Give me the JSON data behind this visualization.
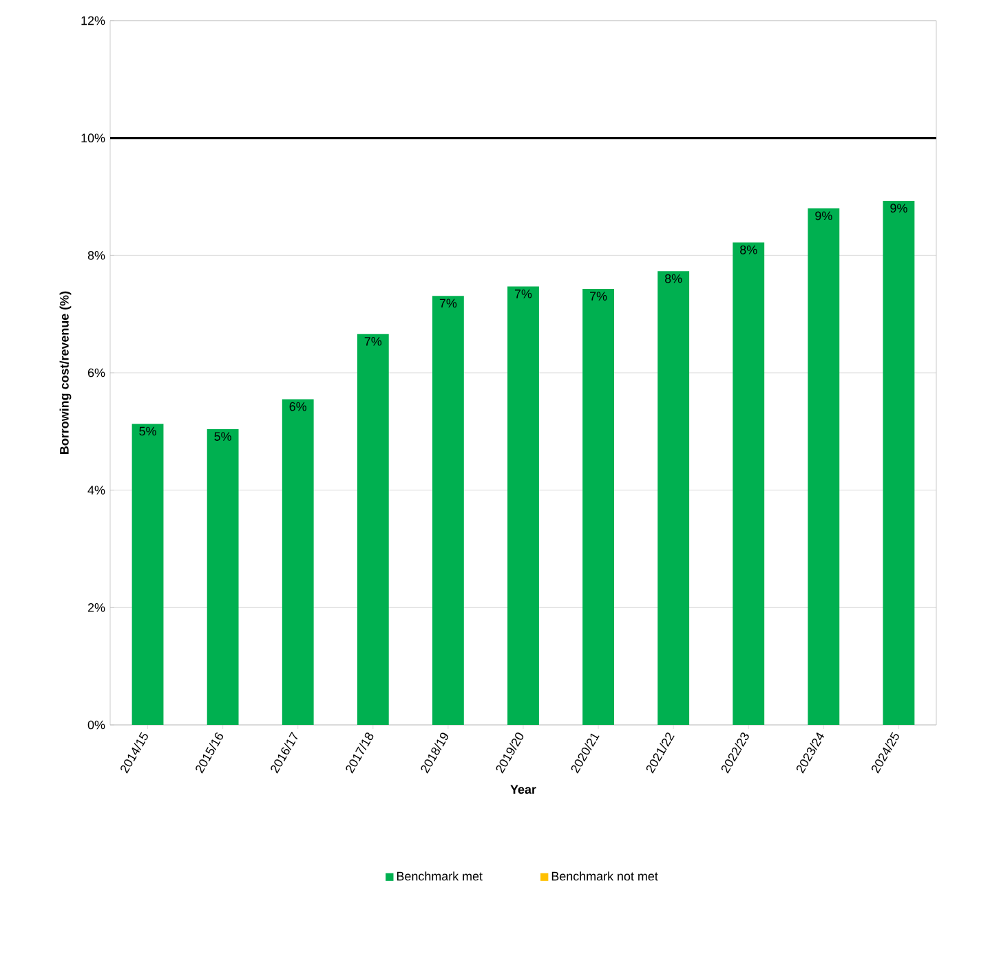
{
  "chart_data": {
    "type": "bar",
    "xlabel": "Year",
    "ylabel": "Borrowing cost/revenue (%)",
    "categories": [
      "2014/15",
      "2015/16",
      "2016/17",
      "2017/18",
      "2018/19",
      "2019/20",
      "2020/21",
      "2021/22",
      "2022/23",
      "2023/24",
      "2024/25"
    ],
    "series": [
      {
        "name": "Benchmark met",
        "color": "#00b050",
        "values": [
          5.13,
          5.04,
          5.55,
          6.66,
          7.31,
          7.47,
          7.43,
          7.73,
          8.22,
          8.8,
          8.93
        ],
        "value_labels": [
          "5%",
          "5%",
          "6%",
          "7%",
          "7%",
          "7%",
          "7%",
          "8%",
          "8%",
          "9%",
          "9%"
        ]
      },
      {
        "name": "Benchmark not met",
        "color": "#ffc000",
        "values": [
          null,
          null,
          null,
          null,
          null,
          null,
          null,
          null,
          null,
          null,
          null
        ]
      }
    ],
    "ylim": [
      0,
      12
    ],
    "yticks": [
      {
        "value": 0,
        "label": "0%"
      },
      {
        "value": 2,
        "label": "2%"
      },
      {
        "value": 4,
        "label": "4%"
      },
      {
        "value": 6,
        "label": "6%"
      },
      {
        "value": 8,
        "label": "8%"
      },
      {
        "value": 10,
        "label": "10%"
      },
      {
        "value": 12,
        "label": "12%"
      }
    ],
    "ref_lines": [
      {
        "axis": "y",
        "value": 10,
        "color": "#000000"
      }
    ],
    "grid": "y",
    "legend": "bottom"
  }
}
